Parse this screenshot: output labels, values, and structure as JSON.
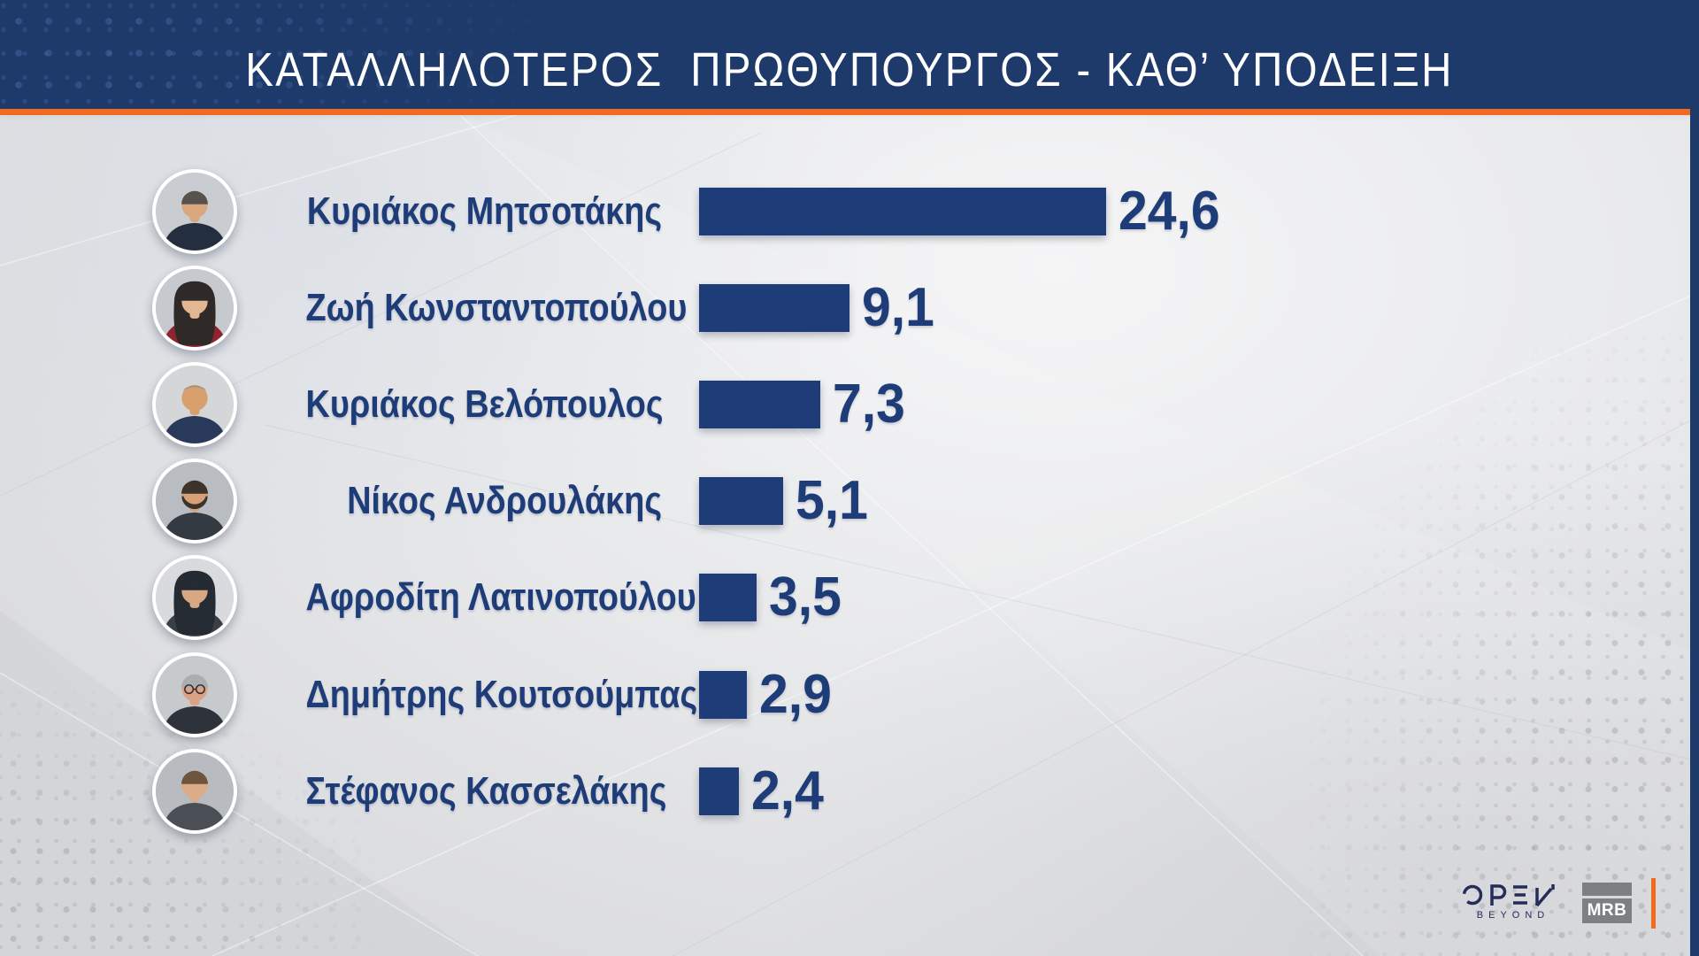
{
  "header": {
    "title": "ΚΑΤΑΛΛΗΛΟΤΕΡΟΣ  ΠΡΩΘΥΠΟΥΡΓΟΣ - ΚΑΘ’ ΥΠΟΔΕΙΞΗ"
  },
  "chart_data": {
    "type": "bar",
    "orientation": "horizontal",
    "title": "ΚΑΤΑΛΛΗΛΟΤΕΡΟΣ ΠΡΩΘΥΠΟΥΡΓΟΣ - ΚΑΘ’ ΥΠΟΔΕΙΞΗ",
    "categories": [
      "Κυριάκος Μητσοτάκης",
      "Ζωή Κωνσταντοπούλου",
      "Κυριάκος Βελόπουλος",
      "Νίκος Ανδρουλάκης",
      "Αφροδίτη Λατινοπούλου",
      "Δημήτρης Κουτσούμπας",
      "Στέφανος Κασσελάκης"
    ],
    "values": [
      24.6,
      9.1,
      7.3,
      5.1,
      3.5,
      2.9,
      2.4
    ],
    "value_labels": [
      "24,6",
      "9,1",
      "7,3",
      "5,1",
      "3,5",
      "2,9",
      "2,4"
    ],
    "xlim": [
      0,
      26
    ],
    "grid": false,
    "legend": false,
    "bar_color": "#1e3d78",
    "label_color": "#1e3d78"
  },
  "avatars": [
    {
      "bg": "#c9cdd2",
      "hair": "#57524b",
      "skin": "#d9a77e",
      "top": "#232f3f",
      "style": "short"
    },
    {
      "bg": "#c6c9cd",
      "hair": "#2f2a28",
      "skin": "#e3b792",
      "top": "#8e2430",
      "style": "long"
    },
    {
      "bg": "#d4d6d8",
      "hair": "#9a958c",
      "skin": "#d7a06c",
      "top": "#28395c",
      "style": "balding"
    },
    {
      "bg": "#b9bdc2",
      "hair": "#3c332b",
      "skin": "#d7a078",
      "top": "#343a42",
      "style": "short",
      "beard": true
    },
    {
      "bg": "#d8dadd",
      "hair": "#252b33",
      "skin": "#d8a783",
      "top": "#3a3f46",
      "style": "long"
    },
    {
      "bg": "#c7cacd",
      "hair": "#abadaf",
      "skin": "#dba184",
      "top": "#2e333b",
      "style": "short",
      "glasses": true
    },
    {
      "bg": "#b8bcc0",
      "hair": "#6e543c",
      "skin": "#dcab88",
      "top": "#4a4f55",
      "style": "short"
    }
  ],
  "footer": {
    "open_label": "OPEN",
    "open_sub_label": "BEYOND",
    "mrb_label": "MRB"
  },
  "colors": {
    "header_navy": "#1d3a6b",
    "bar_navy": "#1e3d78",
    "orange": "#f26a1e",
    "background_light": "#e9eaec",
    "mrb_gray": "#7d8083"
  }
}
